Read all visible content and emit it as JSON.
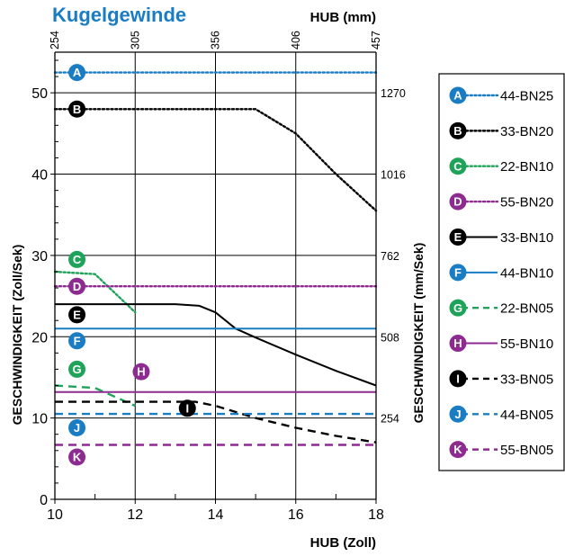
{
  "chart_data": {
    "type": "line",
    "title": "Kugelgewinde",
    "xlabel": "HUB (Zoll)",
    "ylabel": "GESCHWINDIGKEIT (Zoll/Sek)",
    "x2label": "HUB (mm)",
    "y2label": "GESCHWINDIGKEIT (mm/Sek)",
    "xlim": [
      10,
      18
    ],
    "ylim": [
      0,
      55
    ],
    "x_ticks": [
      10,
      12,
      14,
      16,
      18
    ],
    "y_ticks": [
      0,
      10,
      20,
      30,
      40,
      50
    ],
    "x2_ticks": [
      {
        "x": 10,
        "label": "254"
      },
      {
        "x": 12,
        "label": "305"
      },
      {
        "x": 14,
        "label": "356"
      },
      {
        "x": 16,
        "label": "406"
      },
      {
        "x": 18,
        "label": "457"
      }
    ],
    "y2_ticks": [
      {
        "y": 10,
        "label": "254"
      },
      {
        "y": 20,
        "label": "508"
      },
      {
        "y": 30,
        "label": "762"
      },
      {
        "y": 40,
        "label": "1016"
      },
      {
        "y": 50,
        "label": "1270"
      }
    ],
    "grid": true,
    "legend_position": "right",
    "series": [
      {
        "letter": "A",
        "name": "44-BN25",
        "color": "#1a7dc4",
        "style": "dotted",
        "x": [
          10,
          18
        ],
        "y": [
          52.5,
          52.5
        ],
        "marker_at": [
          10.55,
          52.5
        ]
      },
      {
        "letter": "B",
        "name": "33-BN20",
        "color": "#000000",
        "style": "dotted",
        "x": [
          10,
          15,
          16,
          17,
          18
        ],
        "y": [
          48,
          48,
          45,
          40,
          35.5
        ],
        "marker_at": [
          10.55,
          48
        ]
      },
      {
        "letter": "C",
        "name": "22-BN10",
        "color": "#1fa35a",
        "style": "dotted",
        "x": [
          10,
          11,
          12
        ],
        "y": [
          28,
          27.7,
          23
        ],
        "marker_at": [
          10.55,
          29.5
        ]
      },
      {
        "letter": "D",
        "name": "55-BN20",
        "color": "#8e2b91",
        "style": "dotted",
        "x": [
          10,
          18
        ],
        "y": [
          26.2,
          26.2
        ],
        "marker_at": [
          10.55,
          26.2
        ]
      },
      {
        "letter": "E",
        "name": "33-BN10",
        "color": "#000000",
        "style": "solid",
        "x": [
          10,
          12,
          13,
          13.6,
          14,
          14.5,
          15,
          16,
          17,
          18
        ],
        "y": [
          24,
          24,
          24,
          23.8,
          23,
          21,
          19.9,
          17.8,
          15.8,
          14
        ],
        "marker_at": [
          10.55,
          22.7
        ]
      },
      {
        "letter": "F",
        "name": "44-BN10",
        "color": "#1a7dc4",
        "style": "solid",
        "x": [
          10,
          18
        ],
        "y": [
          21,
          21
        ],
        "marker_at": [
          10.55,
          19.5
        ]
      },
      {
        "letter": "G",
        "name": "22-BN05",
        "color": "#1fa35a",
        "style": "dashed",
        "x": [
          10,
          11,
          12
        ],
        "y": [
          14,
          13.7,
          11.5
        ],
        "marker_at": [
          10.55,
          16
        ]
      },
      {
        "letter": "H",
        "name": "55-BN10",
        "color": "#8e2b91",
        "style": "solid",
        "x": [
          10,
          18
        ],
        "y": [
          13.2,
          13.2
        ],
        "marker_at": [
          12.15,
          15.7
        ]
      },
      {
        "letter": "I",
        "name": "33-BN05",
        "color": "#000000",
        "style": "dashed",
        "x": [
          10,
          13.5,
          14,
          15,
          16,
          17,
          18
        ],
        "y": [
          12,
          12,
          11.5,
          10,
          8.8,
          7.8,
          7
        ],
        "marker_at": [
          13.3,
          11.2
        ]
      },
      {
        "letter": "J",
        "name": "44-BN05",
        "color": "#1a7dc4",
        "style": "dashed",
        "x": [
          10,
          18
        ],
        "y": [
          10.5,
          10.5
        ],
        "marker_at": [
          10.55,
          8.8
        ]
      },
      {
        "letter": "K",
        "name": "55-BN05",
        "color": "#8e2b91",
        "style": "dashed",
        "x": [
          10,
          18
        ],
        "y": [
          6.7,
          6.7
        ],
        "marker_at": [
          10.55,
          5.2
        ]
      }
    ]
  }
}
